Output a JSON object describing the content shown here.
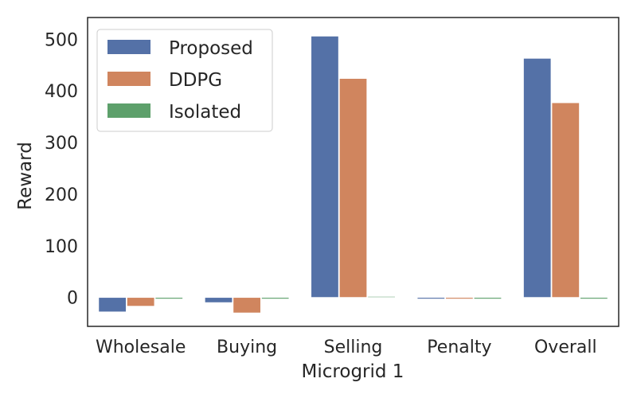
{
  "chart_data": {
    "type": "bar",
    "xlabel": "Microgrid 1",
    "ylabel": "Reward",
    "categories": [
      "Wholesale",
      "Buying",
      "Selling",
      "Penalty",
      "Overall"
    ],
    "series": [
      {
        "name": "Proposed",
        "values": [
          -28,
          -10,
          506,
          -3,
          463
        ],
        "color": "#5471a7"
      },
      {
        "name": "DDPG",
        "values": [
          -17,
          -30,
          424,
          -3,
          377
        ],
        "color": "#d0855e"
      },
      {
        "name": "Isolated",
        "values": [
          -3,
          -3,
          2,
          -3,
          -3
        ],
        "color": "#5da06b"
      }
    ],
    "yticks": [
      0,
      100,
      200,
      300,
      400,
      500
    ],
    "ylim": [
      -56,
      542
    ],
    "grid": false,
    "legend": "top-left"
  }
}
